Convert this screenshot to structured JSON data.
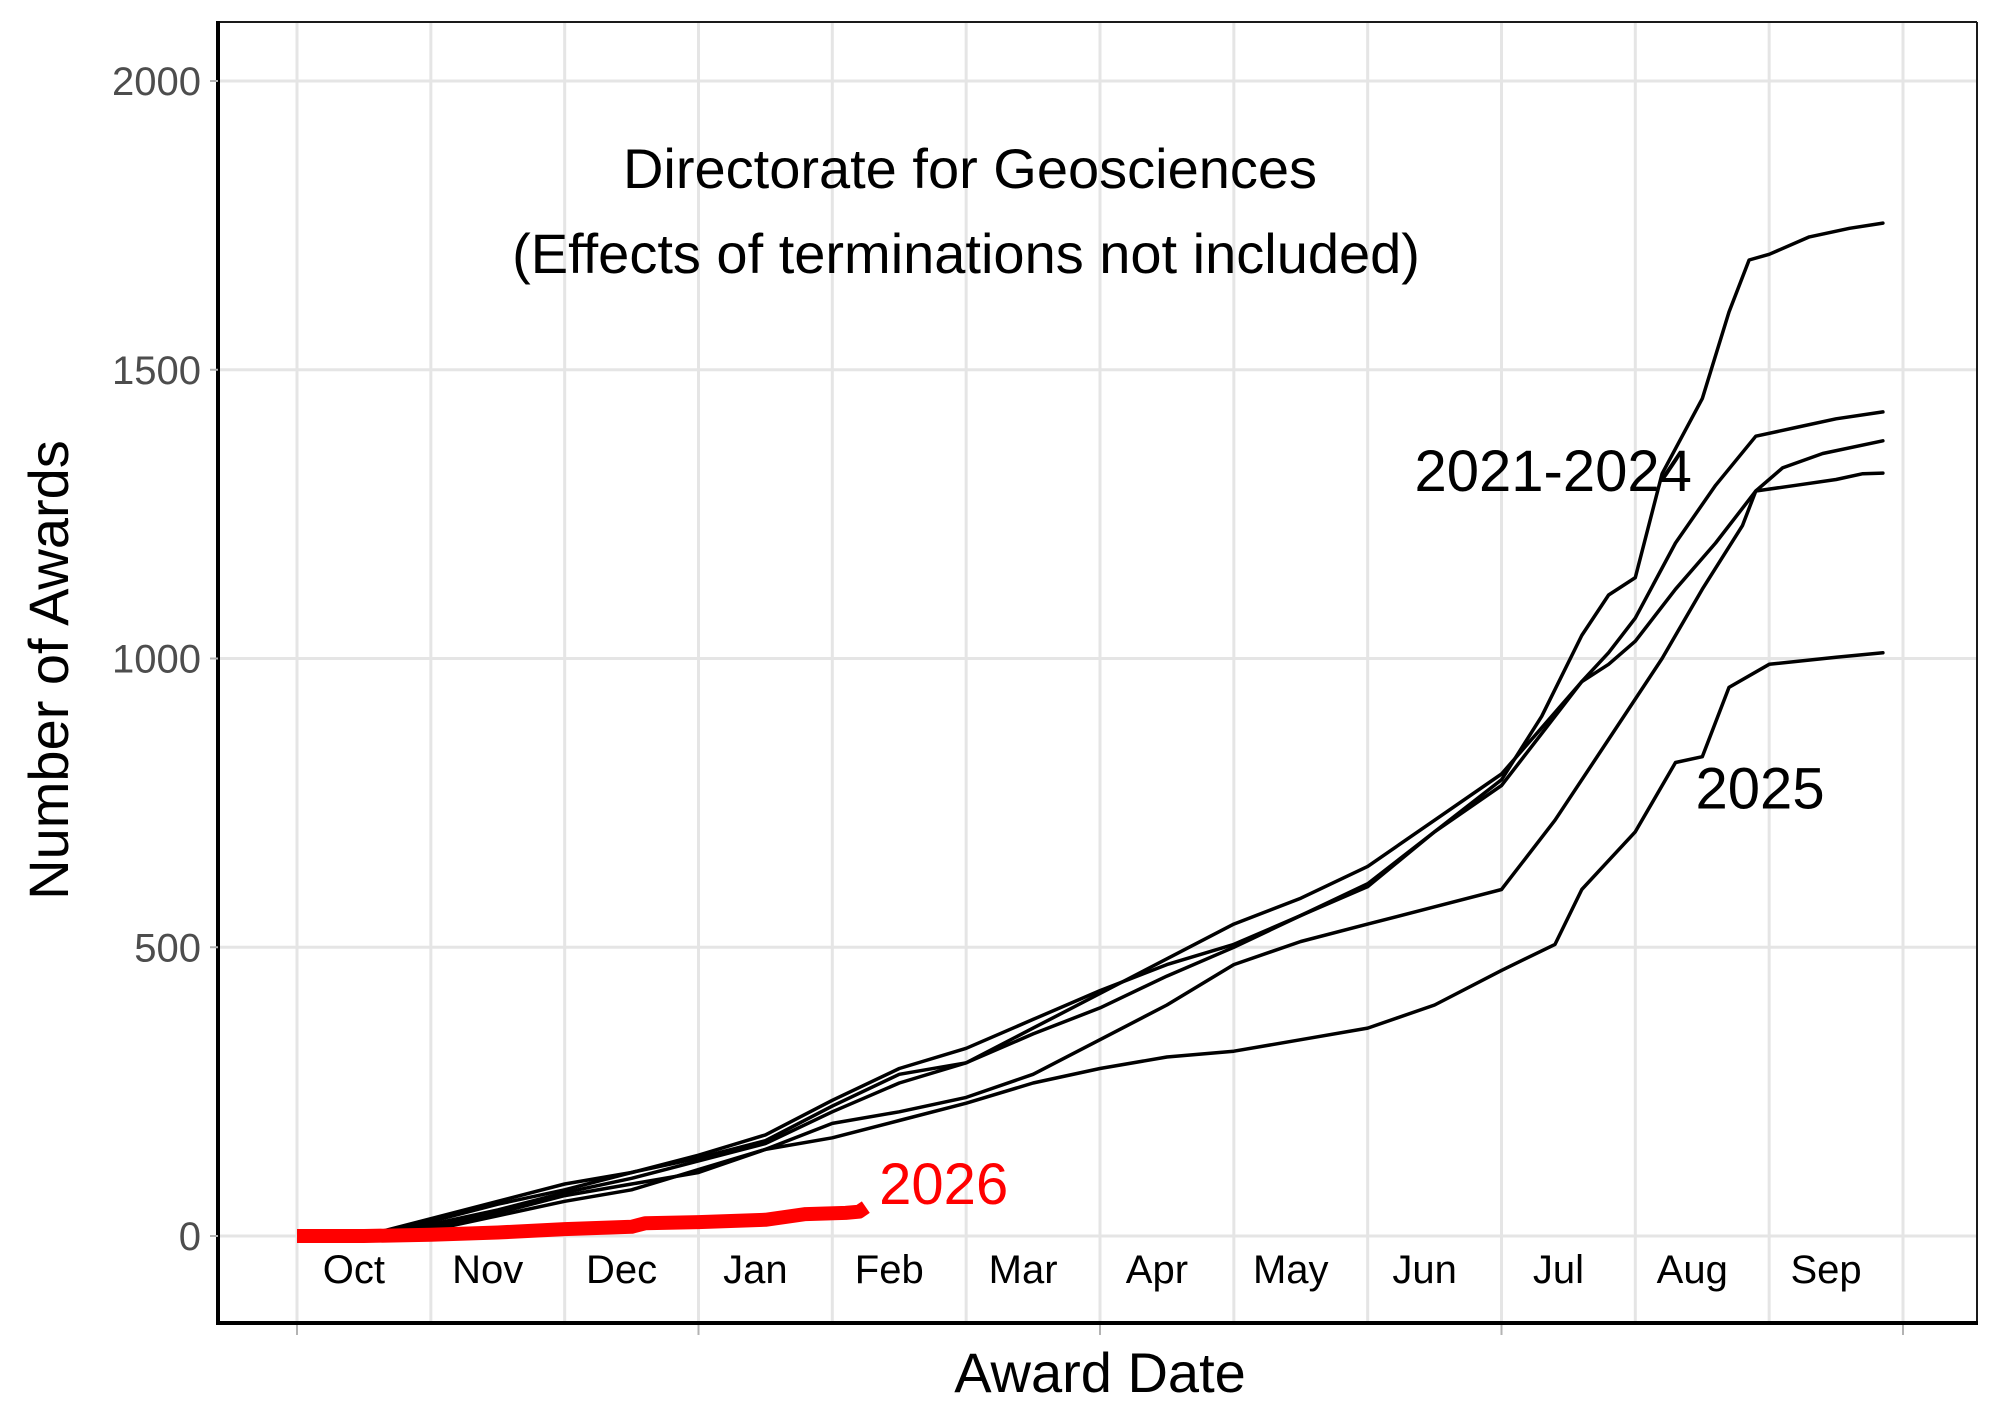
{
  "chart_data": {
    "type": "line",
    "title": [
      "Directorate for Geosciences",
      "(Effects of terminations not included)"
    ],
    "xlabel": "Award Date",
    "ylabel": "Number of Awards",
    "x_unit": "months since Oct 1 (fiscal year)",
    "x_range": [
      -0.48,
      12.55
    ],
    "ylim": [
      -180,
      2100
    ],
    "y_ticks": [
      0,
      500,
      1000,
      1500,
      2000
    ],
    "y_tick_labels": [
      "0",
      "500",
      "1000",
      "1500",
      "2000"
    ],
    "x_tick_labels": [
      "Oct",
      "Nov",
      "Dec",
      "Jan",
      "Feb",
      "Mar",
      "Apr",
      "May",
      "Jun",
      "Jul",
      "Aug",
      "Sep"
    ],
    "grid": true,
    "colors": {
      "history": "#000000",
      "current": "#ff0000",
      "grid": "#e5e5e5"
    },
    "annotations": [
      {
        "text": "2021-2024",
        "x": 8.35,
        "y": 1290,
        "color": "#000000"
      },
      {
        "text": "2025",
        "x": 10.45,
        "y": 740,
        "color": "#000000"
      },
      {
        "text": "2026",
        "x": 4.35,
        "y": 55,
        "color": "#ff0000"
      }
    ],
    "series": [
      {
        "name": "2021-2024 (a)",
        "group": "2021-2024",
        "points": [
          [
            0.5,
            0
          ],
          [
            1,
            25
          ],
          [
            1.5,
            55
          ],
          [
            2,
            80
          ],
          [
            2.5,
            110
          ],
          [
            3,
            140
          ],
          [
            3.5,
            175
          ],
          [
            4,
            235
          ],
          [
            4.5,
            290
          ],
          [
            5,
            325
          ],
          [
            5.5,
            375
          ],
          [
            6,
            425
          ],
          [
            6.5,
            470
          ],
          [
            7,
            505
          ],
          [
            7.5,
            555
          ],
          [
            8,
            605
          ],
          [
            8.5,
            700
          ],
          [
            9,
            790
          ],
          [
            9.3,
            900
          ],
          [
            9.6,
            1040
          ],
          [
            9.8,
            1110
          ],
          [
            10,
            1140
          ],
          [
            10.2,
            1320
          ],
          [
            10.5,
            1450
          ],
          [
            10.7,
            1600
          ],
          [
            10.85,
            1690
          ],
          [
            11,
            1700
          ],
          [
            11.3,
            1730
          ],
          [
            11.6,
            1745
          ],
          [
            11.85,
            1754
          ]
        ]
      },
      {
        "name": "2021-2024 (b)",
        "group": "2021-2024",
        "points": [
          [
            0.5,
            0
          ],
          [
            1,
            30
          ],
          [
            1.5,
            60
          ],
          [
            2,
            90
          ],
          [
            2.5,
            110
          ],
          [
            3,
            135
          ],
          [
            3.5,
            165
          ],
          [
            4,
            225
          ],
          [
            4.5,
            280
          ],
          [
            5,
            300
          ],
          [
            5.5,
            360
          ],
          [
            6,
            420
          ],
          [
            6.5,
            480
          ],
          [
            7,
            540
          ],
          [
            7.5,
            585
          ],
          [
            8,
            640
          ],
          [
            8.5,
            720
          ],
          [
            9,
            800
          ],
          [
            9.3,
            880
          ],
          [
            9.6,
            960
          ],
          [
            9.8,
            1010
          ],
          [
            10,
            1070
          ],
          [
            10.3,
            1200
          ],
          [
            10.6,
            1300
          ],
          [
            10.9,
            1385
          ],
          [
            11.2,
            1400
          ],
          [
            11.5,
            1415
          ],
          [
            11.85,
            1427
          ]
        ]
      },
      {
        "name": "2021-2024 (c)",
        "group": "2021-2024",
        "points": [
          [
            0.5,
            0
          ],
          [
            1,
            20
          ],
          [
            1.5,
            45
          ],
          [
            2,
            75
          ],
          [
            2.5,
            100
          ],
          [
            3,
            130
          ],
          [
            3.5,
            160
          ],
          [
            4,
            215
          ],
          [
            4.5,
            265
          ],
          [
            5,
            300
          ],
          [
            5.5,
            350
          ],
          [
            6,
            395
          ],
          [
            6.5,
            450
          ],
          [
            7,
            500
          ],
          [
            7.5,
            555
          ],
          [
            8,
            610
          ],
          [
            8.5,
            700
          ],
          [
            9,
            780
          ],
          [
            9.3,
            870
          ],
          [
            9.6,
            960
          ],
          [
            9.8,
            990
          ],
          [
            10,
            1030
          ],
          [
            10.3,
            1120
          ],
          [
            10.6,
            1200
          ],
          [
            10.9,
            1290
          ],
          [
            11.1,
            1330
          ],
          [
            11.4,
            1355
          ],
          [
            11.85,
            1377
          ]
        ]
      },
      {
        "name": "2021-2024 (d)",
        "group": "2021-2024",
        "points": [
          [
            0.5,
            0
          ],
          [
            1,
            15
          ],
          [
            1.5,
            40
          ],
          [
            2,
            70
          ],
          [
            2.5,
            90
          ],
          [
            3,
            110
          ],
          [
            3.5,
            150
          ],
          [
            4,
            195
          ],
          [
            4.5,
            215
          ],
          [
            5,
            240
          ],
          [
            5.5,
            280
          ],
          [
            6,
            340
          ],
          [
            6.5,
            400
          ],
          [
            7,
            470
          ],
          [
            7.5,
            510
          ],
          [
            8,
            540
          ],
          [
            8.5,
            570
          ],
          [
            9,
            600
          ],
          [
            9.4,
            720
          ],
          [
            9.8,
            860
          ],
          [
            10.2,
            1000
          ],
          [
            10.5,
            1120
          ],
          [
            10.8,
            1230
          ],
          [
            10.9,
            1290
          ],
          [
            11.2,
            1300
          ],
          [
            11.5,
            1310
          ],
          [
            11.7,
            1320
          ],
          [
            11.85,
            1321
          ]
        ]
      },
      {
        "name": "2025",
        "group": "2025",
        "points": [
          [
            0.5,
            0
          ],
          [
            1,
            10
          ],
          [
            1.5,
            35
          ],
          [
            2,
            60
          ],
          [
            2.5,
            80
          ],
          [
            3,
            115
          ],
          [
            3.5,
            150
          ],
          [
            4,
            170
          ],
          [
            4.5,
            200
          ],
          [
            5,
            230
          ],
          [
            5.5,
            265
          ],
          [
            6,
            290
          ],
          [
            6.5,
            310
          ],
          [
            7,
            320
          ],
          [
            7.5,
            340
          ],
          [
            8,
            360
          ],
          [
            8.5,
            400
          ],
          [
            9,
            460
          ],
          [
            9.4,
            505
          ],
          [
            9.6,
            600
          ],
          [
            9.8,
            650
          ],
          [
            10,
            700
          ],
          [
            10.3,
            820
          ],
          [
            10.5,
            830
          ],
          [
            10.7,
            950
          ],
          [
            11,
            990
          ],
          [
            11.5,
            1002
          ],
          [
            11.85,
            1010
          ]
        ]
      },
      {
        "name": "2026",
        "group": "2026",
        "points": [
          [
            0,
            0
          ],
          [
            0.5,
            0
          ],
          [
            1,
            2
          ],
          [
            1.5,
            6
          ],
          [
            2,
            12
          ],
          [
            2.5,
            16
          ],
          [
            2.6,
            22
          ],
          [
            3,
            24
          ],
          [
            3.5,
            28
          ],
          [
            3.8,
            38
          ],
          [
            4.1,
            40
          ],
          [
            4.2,
            42
          ],
          [
            4.25,
            50
          ]
        ]
      }
    ]
  }
}
